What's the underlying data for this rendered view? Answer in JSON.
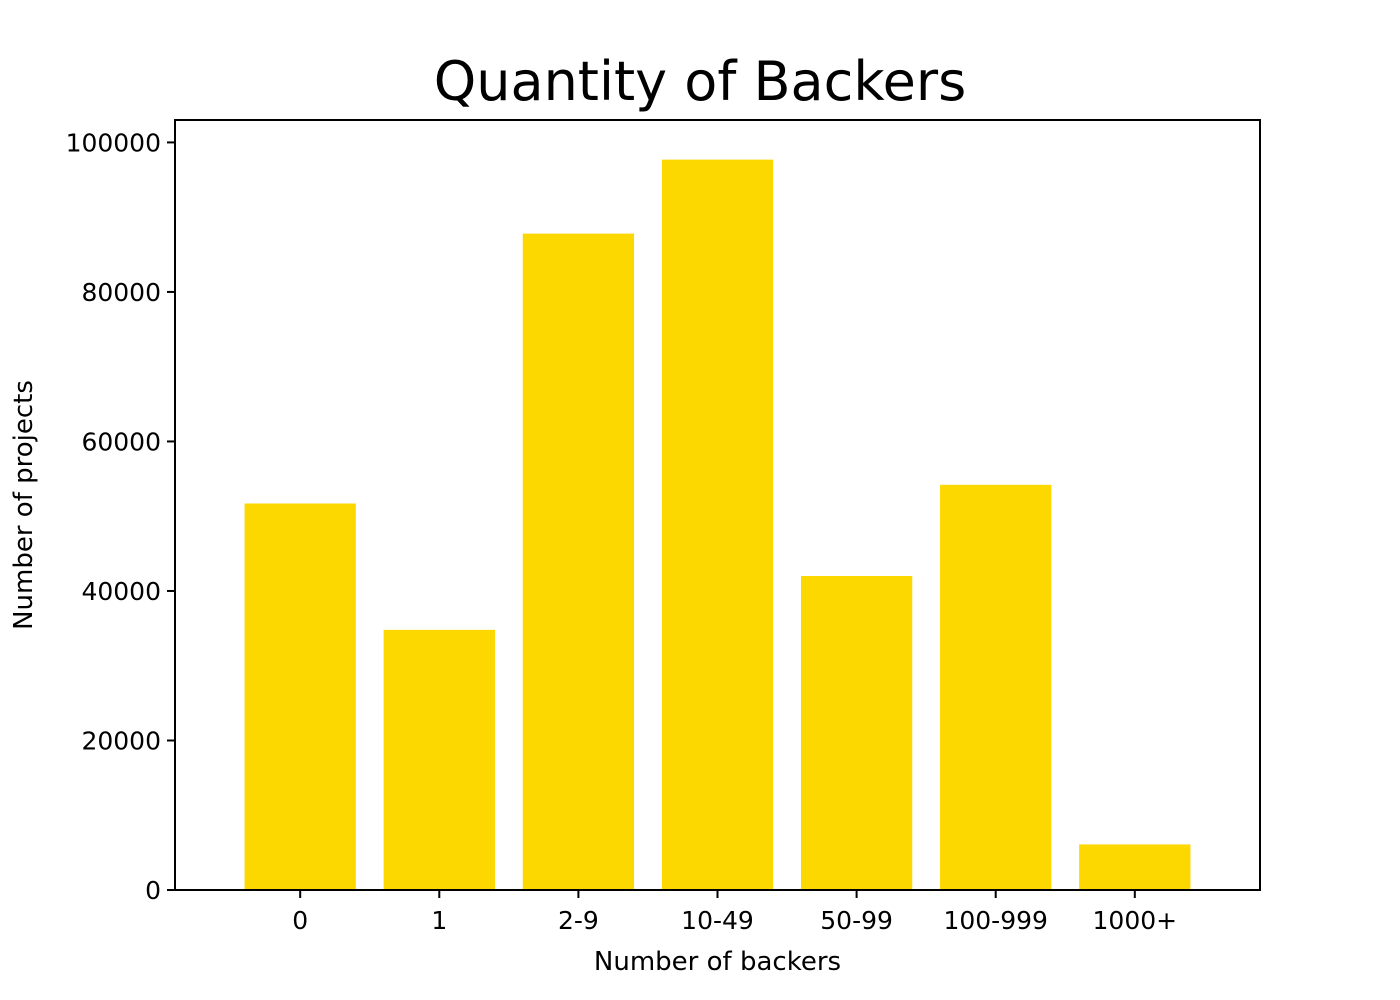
{
  "chart_data": {
    "type": "bar",
    "title": "Quantity of Backers",
    "xlabel": "Number of backers",
    "ylabel": "Number of projects",
    "categories": [
      "0",
      "1",
      "2-9",
      "10-49",
      "50-99",
      "100-999",
      "1000+"
    ],
    "values": [
      51700,
      34800,
      87800,
      97700,
      42000,
      54200,
      6100
    ],
    "ylim": [
      0,
      103000
    ],
    "yticks": [
      0,
      20000,
      40000,
      60000,
      80000,
      100000
    ],
    "ytick_labels": [
      "0",
      "20000",
      "40000",
      "60000",
      "80000",
      "100000"
    ],
    "bar_color": "#FCD700",
    "grid": false,
    "legend": "none"
  }
}
